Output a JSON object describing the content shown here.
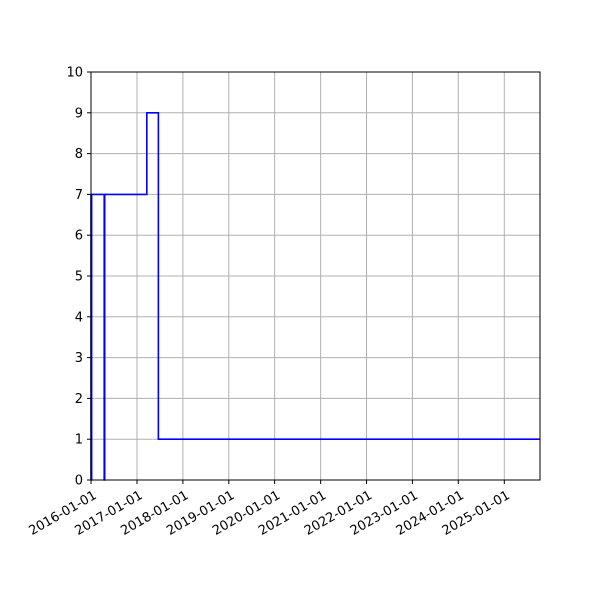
{
  "chart_data": {
    "type": "line",
    "step": true,
    "grid": true,
    "title": "",
    "xlabel": "",
    "ylabel": "",
    "x_axis_type": "date",
    "xlim": [
      "2016-01-01",
      "2025-10-12"
    ],
    "ylim": [
      0,
      10
    ],
    "x_tick_labels": [
      "2016-01-01",
      "2017-01-01",
      "2018-01-01",
      "2019-01-01",
      "2020-01-01",
      "2021-01-01",
      "2022-01-01",
      "2023-01-01",
      "2024-01-01",
      "2025-01-01"
    ],
    "y_tick_labels": [
      "0",
      "1",
      "2",
      "3",
      "4",
      "5",
      "6",
      "7",
      "8",
      "9",
      "10"
    ],
    "series": [
      {
        "color": "#0000ff",
        "points": [
          {
            "x": "2016-01-01",
            "y": 0
          },
          {
            "x": "2016-01-01",
            "y": 7
          },
          {
            "x": "2016-01-03",
            "y": 7
          },
          {
            "x": "2016-01-03",
            "y": 0
          },
          {
            "x": "2016-01-06",
            "y": 0
          },
          {
            "x": "2016-01-06",
            "y": 7
          },
          {
            "x": "2016-04-15",
            "y": 7
          },
          {
            "x": "2016-04-15",
            "y": 0
          },
          {
            "x": "2016-04-19",
            "y": 0
          },
          {
            "x": "2016-04-19",
            "y": 7
          },
          {
            "x": "2017-03-20",
            "y": 7
          },
          {
            "x": "2017-03-20",
            "y": 9
          },
          {
            "x": "2017-06-20",
            "y": 9
          },
          {
            "x": "2017-06-20",
            "y": 1
          },
          {
            "x": "2025-10-12",
            "y": 1
          }
        ]
      }
    ]
  }
}
